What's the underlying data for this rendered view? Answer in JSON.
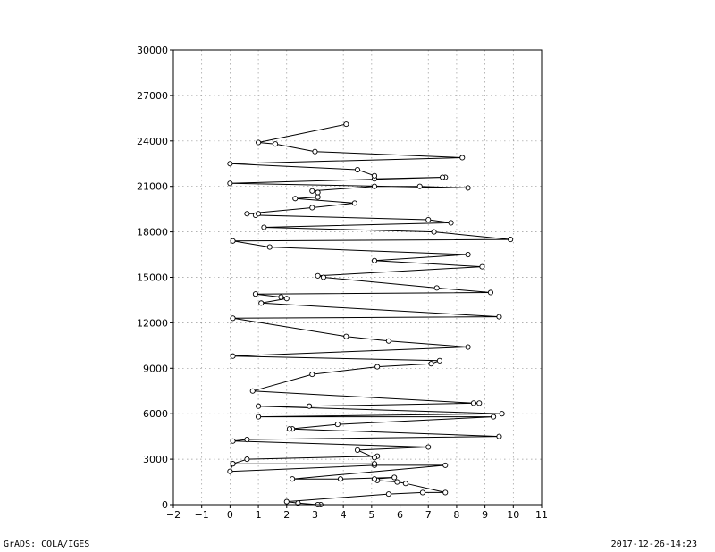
{
  "chart_data": {
    "type": "line",
    "title": "",
    "xlabel": "",
    "ylabel": "",
    "xlim": [
      -2,
      11
    ],
    "ylim": [
      0,
      30000
    ],
    "xticks": [
      -2,
      -1,
      0,
      1,
      2,
      3,
      4,
      5,
      6,
      7,
      8,
      9,
      10,
      11
    ],
    "xtick_labels": [
      "−2",
      "−1",
      "0",
      "1",
      "2",
      "3",
      "4",
      "5",
      "6",
      "7",
      "8",
      "9",
      "10",
      "11"
    ],
    "yticks": [
      0,
      3000,
      6000,
      9000,
      12000,
      15000,
      18000,
      21000,
      24000,
      27000,
      30000
    ],
    "ytick_labels": [
      "0",
      "3000",
      "6000",
      "9000",
      "12000",
      "15000",
      "18000",
      "21000",
      "24000",
      "27000",
      "30000"
    ],
    "grid": true,
    "series": [
      {
        "marker": "circle",
        "x": [
          3.2,
          3.1,
          2.4,
          2.0,
          5.6,
          6.8,
          7.6,
          6.2,
          5.9,
          5.2,
          5.1,
          5.8,
          3.9,
          2.2,
          7.6,
          5.1,
          0.0,
          0.1,
          5.1,
          0.1,
          0.6,
          5.2,
          5.1,
          4.5,
          7.0,
          0.1,
          0.6,
          9.5,
          2.2,
          2.1,
          3.8,
          9.3,
          1.0,
          9.6,
          1.0,
          2.8,
          8.8,
          8.6,
          0.8,
          2.9,
          5.2,
          7.1,
          7.4,
          0.1,
          8.4,
          5.6,
          4.1,
          0.1,
          9.5,
          1.1,
          2.0,
          1.8,
          0.9,
          9.2,
          7.3,
          3.3,
          3.1,
          8.9,
          5.1,
          8.4,
          1.4,
          0.1,
          9.9,
          7.2,
          1.2,
          7.8,
          7.0,
          0.9,
          1.0,
          0.6,
          2.9,
          4.4,
          2.3,
          3.1,
          3.1,
          2.9,
          5.1,
          6.7,
          8.4,
          0.0,
          7.6,
          7.5,
          5.1,
          5.1,
          4.5,
          0.0,
          8.2,
          3.0,
          1.6,
          1.0,
          4.1
        ],
        "y": [
          0,
          0,
          100,
          200,
          700,
          800,
          800,
          1400,
          1500,
          1600,
          1700,
          1800,
          1700,
          1700,
          2600,
          2600,
          2200,
          2700,
          2700,
          2700,
          3000,
          3200,
          3100,
          3600,
          3800,
          4200,
          4300,
          4500,
          5000,
          5000,
          5300,
          5800,
          5800,
          6000,
          6500,
          6500,
          6700,
          6700,
          7500,
          8600,
          9100,
          9300,
          9500,
          9800,
          10400,
          10800,
          11100,
          12300,
          12400,
          13300,
          13600,
          13700,
          13900,
          14000,
          14300,
          15000,
          15100,
          15700,
          16100,
          16500,
          17000,
          17400,
          17500,
          18000,
          18300,
          18600,
          18800,
          19100,
          19200,
          19200,
          19600,
          19900,
          20200,
          20300,
          20600,
          20700,
          21000,
          21000,
          20900,
          21200,
          21600,
          21600,
          21500,
          21700,
          22100,
          22500,
          22900,
          23300,
          23800,
          23900,
          25100
        ]
      }
    ]
  },
  "footer": {
    "left": "GrADS: COLA/IGES",
    "right": "2017-12-26-14:23"
  }
}
